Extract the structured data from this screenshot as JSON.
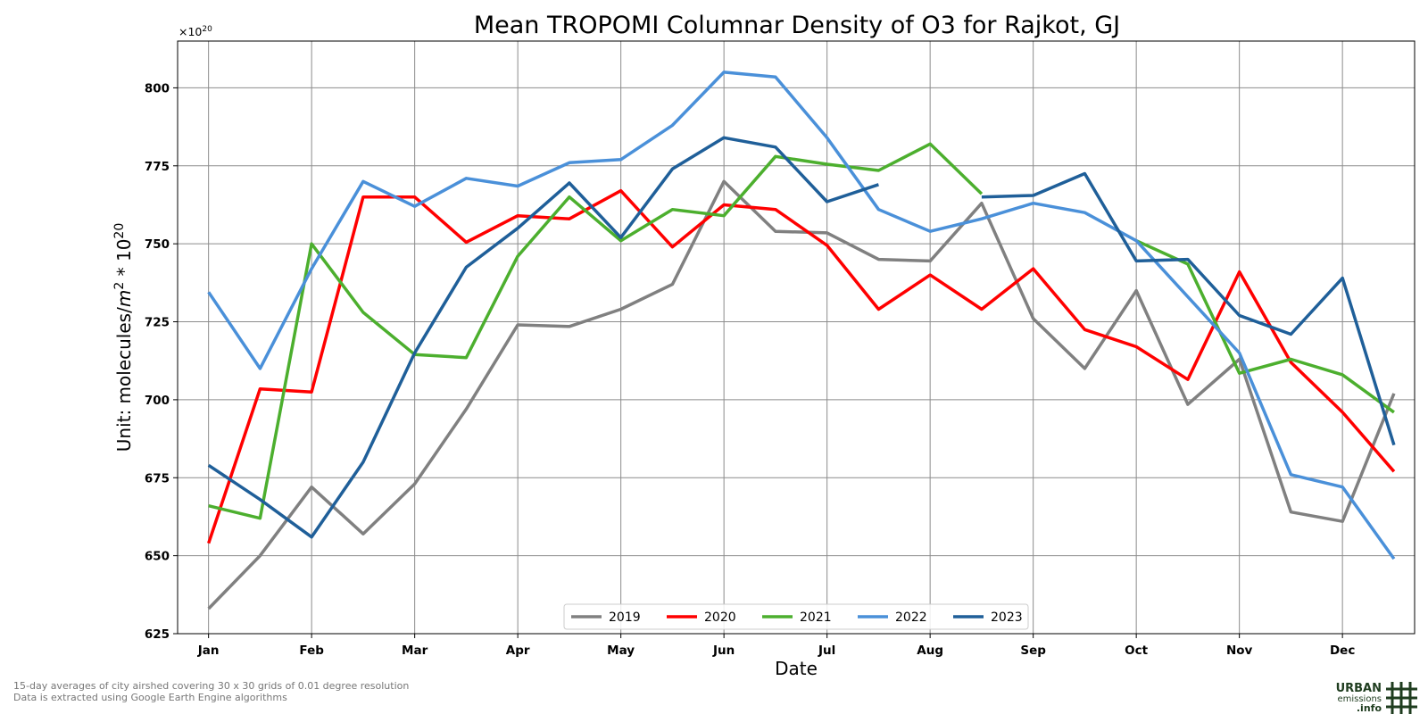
{
  "chart_data": {
    "type": "line",
    "title": "Mean TROPOMI Columnar Density of O3 for Rajkot, GJ",
    "xlabel": "Date",
    "ylabel_prefix": "Unit: molecules/",
    "ylabel_m": "m",
    "ylabel_m_exp": "2",
    "ylabel_times": " * 10",
    "ylabel_exp": "20",
    "y_multiplier_base": "×10",
    "y_multiplier_exp": "20",
    "ylim": [
      625,
      815
    ],
    "yticks": [
      625,
      650,
      675,
      700,
      725,
      750,
      775,
      800
    ],
    "xlim": [
      -0.6,
      23.4
    ],
    "month_ticks": [
      "Jan",
      "Feb",
      "Mar",
      "Apr",
      "May",
      "Jun",
      "Jul",
      "Aug",
      "Sep",
      "Oct",
      "Nov",
      "Dec"
    ],
    "grid": true,
    "legend_position": "lower center",
    "series": [
      {
        "name": "2019",
        "color": "#808080",
        "values": [
          633,
          650,
          672,
          657,
          673,
          697,
          724,
          723.5,
          729,
          737,
          770,
          754,
          753.5,
          745,
          744.5,
          763,
          726,
          710,
          735,
          698.5,
          713,
          664,
          661,
          702
        ]
      },
      {
        "name": "2020",
        "color": "#ff0000",
        "values": [
          654,
          703.5,
          702.5,
          765,
          765,
          750.5,
          759,
          758,
          767,
          749,
          762.5,
          761,
          749.5,
          729,
          740,
          729,
          742,
          722.5,
          717,
          706.5,
          741,
          712,
          696,
          677
        ]
      },
      {
        "name": "2021",
        "color": "#4caf2e",
        "values": [
          666,
          662,
          750,
          728,
          714.5,
          713.5,
          746,
          765,
          751,
          761,
          759,
          778,
          775.5,
          773.5,
          782,
          766,
          null,
          null,
          751,
          743.5,
          708.5,
          713,
          708,
          696
        ]
      },
      {
        "name": "2022",
        "color": "#4a90d9",
        "values": [
          734.5,
          710,
          742,
          770,
          762,
          771,
          768.5,
          776,
          777,
          788,
          805,
          803.5,
          784,
          761,
          754,
          758,
          763,
          760,
          751,
          733,
          715,
          676,
          672,
          649
        ]
      },
      {
        "name": "2023",
        "color": "#1f5f99",
        "values": [
          679,
          668,
          656,
          680,
          715,
          742.5,
          755,
          769.5,
          752,
          774,
          784,
          781,
          763.5,
          769,
          null,
          765,
          765.5,
          772.5,
          744.5,
          745,
          727,
          721,
          739,
          685.5
        ]
      }
    ]
  },
  "footnotes": {
    "line1": "15-day averages of city airshed covering 30 x 30 grids of 0.01 degree resolution",
    "line2": "Data is extracted using Google Earth Engine algorithms"
  },
  "logo": {
    "line1": "URBAN",
    "line2": "emissions",
    "line3": ".info"
  }
}
